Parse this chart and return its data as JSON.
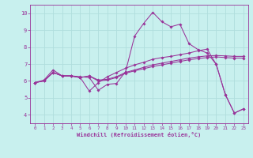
{
  "xlabel": "Windchill (Refroidissement éolien,°C)",
  "xlim": [
    -0.5,
    23.5
  ],
  "ylim": [
    3.5,
    10.5
  ],
  "xticks": [
    0,
    1,
    2,
    3,
    4,
    5,
    6,
    7,
    8,
    9,
    10,
    11,
    12,
    13,
    14,
    15,
    16,
    17,
    18,
    19,
    20,
    21,
    22,
    23
  ],
  "yticks": [
    4,
    5,
    6,
    7,
    8,
    9,
    10
  ],
  "bg_color": "#c8f0ee",
  "line_color": "#993399",
  "grid_color": "#b0dedd",
  "lines": [
    {
      "x": [
        0,
        1,
        2,
        3,
        4,
        5,
        6,
        7,
        8,
        9,
        10,
        11,
        12,
        13,
        14,
        15,
        16,
        17,
        18,
        19,
        20,
        21,
        22,
        23
      ],
      "y": [
        5.9,
        6.05,
        6.65,
        6.3,
        6.3,
        6.25,
        6.2,
        5.45,
        5.8,
        5.85,
        6.55,
        8.65,
        9.4,
        10.05,
        9.5,
        9.2,
        9.35,
        8.2,
        7.85,
        7.65,
        6.98,
        5.2,
        4.1,
        4.35
      ]
    },
    {
      "x": [
        0,
        1,
        2,
        3,
        4,
        5,
        6,
        7,
        8,
        9,
        10,
        11,
        12,
        13,
        14,
        15,
        16,
        17,
        18,
        19,
        20,
        21,
        22,
        23
      ],
      "y": [
        5.9,
        6.0,
        6.5,
        6.3,
        6.3,
        6.2,
        6.3,
        6.05,
        6.1,
        6.25,
        6.5,
        6.65,
        6.8,
        6.95,
        7.05,
        7.15,
        7.25,
        7.35,
        7.42,
        7.48,
        7.5,
        7.48,
        7.45,
        7.45
      ]
    },
    {
      "x": [
        0,
        1,
        2,
        3,
        4,
        5,
        6,
        7,
        8,
        9,
        10,
        11,
        12,
        13,
        14,
        15,
        16,
        17,
        18,
        19,
        20,
        21,
        22,
        23
      ],
      "y": [
        5.9,
        6.0,
        6.5,
        6.3,
        6.28,
        6.2,
        6.28,
        6.0,
        6.05,
        6.2,
        6.45,
        6.6,
        6.72,
        6.85,
        6.95,
        7.05,
        7.15,
        7.25,
        7.32,
        7.38,
        7.42,
        7.38,
        7.35,
        7.35
      ]
    },
    {
      "x": [
        0,
        1,
        2,
        3,
        4,
        5,
        6,
        7,
        8,
        9,
        10,
        11,
        12,
        13,
        14,
        15,
        16,
        17,
        18,
        19,
        20,
        21,
        22,
        23
      ],
      "y": [
        5.9,
        6.0,
        6.5,
        6.3,
        6.3,
        6.2,
        5.4,
        5.9,
        6.25,
        6.5,
        6.75,
        6.95,
        7.1,
        7.28,
        7.38,
        7.45,
        7.55,
        7.65,
        7.78,
        7.88,
        6.98,
        5.2,
        4.1,
        4.35
      ]
    }
  ]
}
